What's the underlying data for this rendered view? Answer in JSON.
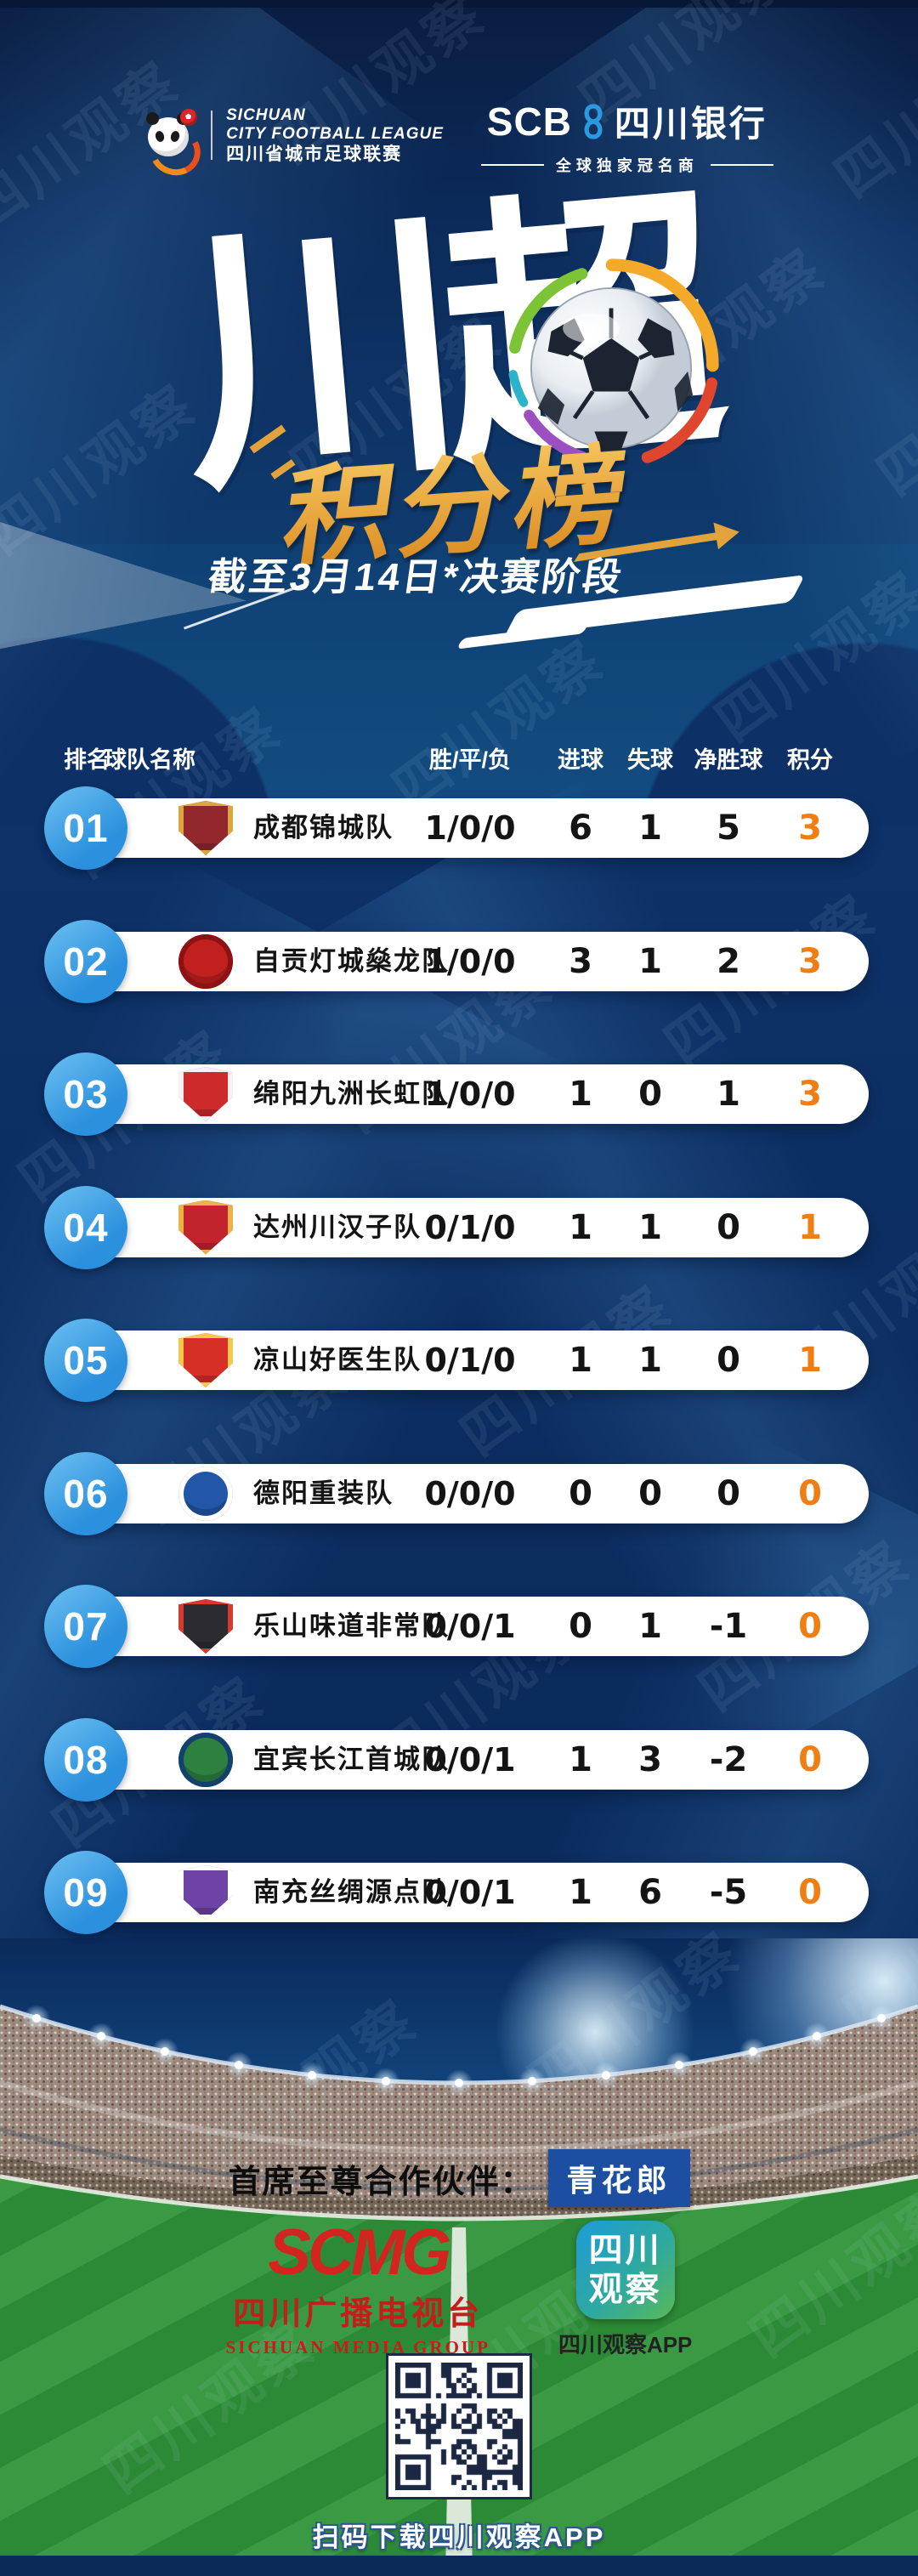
{
  "meta": {
    "watermark": "四川观察"
  },
  "top": {
    "league": {
      "line1": "SICHUAN",
      "line2": "CITY FOOTBALL LEAGUE",
      "line3": "四川省城市足球联赛"
    },
    "bank": {
      "abbr": "SCB",
      "name": "四川银行",
      "tagline": "全球独家冠名商"
    }
  },
  "title": {
    "main": "川超",
    "badge": "积分榜",
    "note": "截至3月14日*决赛阶段"
  },
  "table": {
    "columns": [
      "排名",
      "球队名称",
      "胜/平/负",
      "进球",
      "失球",
      "净胜球",
      "积分"
    ],
    "rows": [
      {
        "rank": "01",
        "team": "成都锦城队",
        "wdl": "1/0/0",
        "gf": "6",
        "ga": "1",
        "gd": "5",
        "pts": "3",
        "badge_shape": "shield",
        "badge_color": "#93272e",
        "badge_accent": "#dca63f"
      },
      {
        "rank": "02",
        "team": "自贡灯城燊龙队",
        "wdl": "1/0/0",
        "gf": "3",
        "ga": "1",
        "gd": "2",
        "pts": "3",
        "badge_shape": "circle",
        "badge_color": "#c2201f",
        "badge_accent": "#8c1214"
      },
      {
        "rank": "03",
        "team": "绵阳九洲长虹队",
        "wdl": "1/0/0",
        "gf": "1",
        "ga": "0",
        "gd": "1",
        "pts": "3",
        "badge_shape": "shield",
        "badge_color": "#cd2a2c",
        "badge_accent": "#f2f2f2"
      },
      {
        "rank": "04",
        "team": "达州川汉子队",
        "wdl": "0/1/0",
        "gf": "1",
        "ga": "1",
        "gd": "0",
        "pts": "1",
        "badge_shape": "shield",
        "badge_color": "#c3242b",
        "badge_accent": "#e8b347"
      },
      {
        "rank": "05",
        "team": "凉山好医生队",
        "wdl": "0/1/0",
        "gf": "1",
        "ga": "1",
        "gd": "0",
        "pts": "1",
        "badge_shape": "shield",
        "badge_color": "#d52f26",
        "badge_accent": "#f3c84d"
      },
      {
        "rank": "06",
        "team": "德阳重装队",
        "wdl": "0/0/0",
        "gf": "0",
        "ga": "0",
        "gd": "0",
        "pts": "0",
        "badge_shape": "circle",
        "badge_color": "#2257a8",
        "badge_accent": "#ffffff"
      },
      {
        "rank": "07",
        "team": "乐山味道非常队",
        "wdl": "0/0/1",
        "gf": "0",
        "ga": "1",
        "gd": "-1",
        "pts": "0",
        "badge_shape": "shield",
        "badge_color": "#2b2b31",
        "badge_accent": "#d63a2f"
      },
      {
        "rank": "08",
        "team": "宜宾长江首城队",
        "wdl": "0/0/1",
        "gf": "1",
        "ga": "3",
        "gd": "-2",
        "pts": "0",
        "badge_shape": "circle",
        "badge_color": "#2e8040",
        "badge_accent": "#14406e"
      },
      {
        "rank": "09",
        "team": "南充丝绸源点队",
        "wdl": "0/0/1",
        "gf": "1",
        "ga": "6",
        "gd": "-5",
        "pts": "0",
        "badge_shape": "shield",
        "badge_color": "#6f42a5",
        "badge_accent": "#ffffff"
      }
    ]
  },
  "chart_data": {
    "type": "table",
    "title": "川超积分榜",
    "subtitle": "截至3月14日*决赛阶段",
    "columns": [
      "排名",
      "球队名称",
      "胜/平/负",
      "进球",
      "失球",
      "净胜球",
      "积分"
    ],
    "rows": [
      [
        "01",
        "成都锦城队",
        "1/0/0",
        6,
        1,
        5,
        3
      ],
      [
        "02",
        "自贡灯城燊龙队",
        "1/0/0",
        3,
        1,
        2,
        3
      ],
      [
        "03",
        "绵阳九洲长虹队",
        "1/0/0",
        1,
        0,
        1,
        3
      ],
      [
        "04",
        "达州川汉子队",
        "0/1/0",
        1,
        1,
        0,
        1
      ],
      [
        "05",
        "凉山好医生队",
        "0/1/0",
        1,
        1,
        0,
        1
      ],
      [
        "06",
        "德阳重装队",
        "0/0/0",
        0,
        0,
        0,
        0
      ],
      [
        "07",
        "乐山味道非常队",
        "0/0/1",
        0,
        1,
        -1,
        0
      ],
      [
        "08",
        "宜宾长江首城队",
        "0/0/1",
        1,
        3,
        -2,
        0
      ],
      [
        "09",
        "南充丝绸源点队",
        "0/0/1",
        1,
        6,
        -5,
        0
      ]
    ]
  },
  "footer": {
    "partner_label": "首席至尊合作伙伴：",
    "partner_brand": "青花郎",
    "scmg": {
      "abbr": "SCMG",
      "cn": "四川广播电视台",
      "en": "SICHUAN MEDIA GROUP"
    },
    "app": {
      "line1": "四川",
      "line2": "观察",
      "caption": "四川观察APP"
    },
    "qr_caption": "扫码下载四川观察APP"
  },
  "colors": {
    "points_orange": "#f07e12",
    "rank_blue": "#3a9fe5",
    "gold": "#e4a23a",
    "navy": "#0d3166",
    "partner_blue": "#1c4fa1",
    "scmg_red": "#c9221d"
  }
}
